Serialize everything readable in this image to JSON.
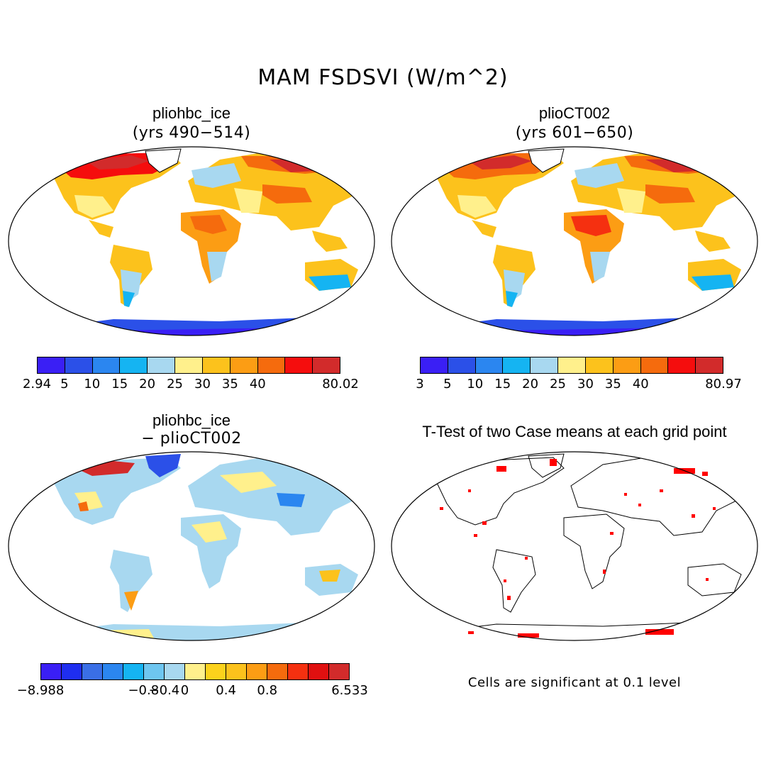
{
  "figure": {
    "title": "MAM FSDSVI (W/m^2)"
  },
  "panels": {
    "top_left": {
      "title": "pliohbc_ice",
      "subtitle": "(yrs 490−514)"
    },
    "top_right": {
      "title": "plioCT002",
      "subtitle": "(yrs 601−650)"
    },
    "bottom_left": {
      "title": "pliohbc_ice",
      "subtitle": "− plioCT002"
    },
    "bottom_right": {
      "title": "T-Test of two Case means at each grid point",
      "note": "Cells are significant at 0.1 level"
    }
  },
  "colorbars": {
    "left": {
      "colors": [
        "#3a1ff5",
        "#2b50e8",
        "#2b86f0",
        "#15b4f2",
        "#a8d8f0",
        "#fff08c",
        "#fcc21c",
        "#fc9d14",
        "#f56b0d",
        "#f50d0d",
        "#d22b2b"
      ],
      "labels": [
        "2.94",
        "5",
        "10",
        "15",
        "20",
        "25",
        "30",
        "35",
        "40",
        "80.02"
      ]
    },
    "right": {
      "colors": [
        "#3a1ff5",
        "#2b50e8",
        "#2b86f0",
        "#15b4f2",
        "#a8d8f0",
        "#fff08c",
        "#fcc21c",
        "#fc9d14",
        "#f56b0d",
        "#f50d0d",
        "#d22b2b"
      ],
      "labels": [
        "3",
        "5",
        "10",
        "15",
        "20",
        "25",
        "30",
        "35",
        "40",
        "80.97"
      ]
    },
    "diff": {
      "colors": [
        "#3a1ff5",
        "#1f2ef0",
        "#3a6fe6",
        "#2b86f0",
        "#15b4f2",
        "#6ec6f0",
        "#a8d8f0",
        "#fff08c",
        "#fcd21c",
        "#fcc21c",
        "#fc9d14",
        "#f56b0d",
        "#f53010",
        "#e01010",
        "#d22b2b"
      ],
      "labels": [
        "−8.988",
        "−0.8",
        "−0.4",
        "0",
        "0.4",
        "0.8",
        "6.533"
      ]
    }
  },
  "colors": {
    "map_outline": "#000000",
    "significance": "#ff0000"
  }
}
